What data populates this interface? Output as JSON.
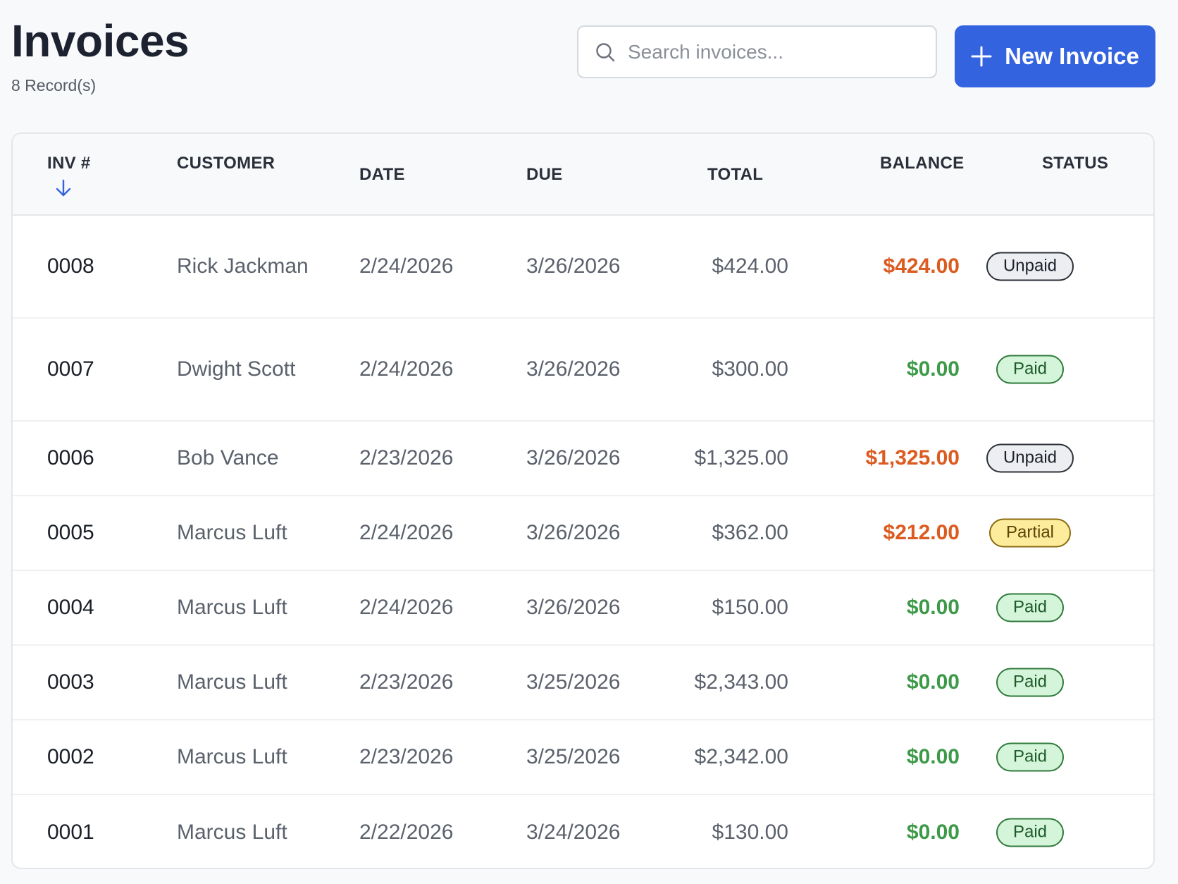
{
  "header": {
    "title": "Invoices",
    "record_count": "8 Record(s)"
  },
  "search": {
    "placeholder": "Search invoices...",
    "value": ""
  },
  "actions": {
    "new_invoice_label": "New Invoice"
  },
  "table": {
    "columns": {
      "inv": "INV #",
      "customer": "CUSTOMER",
      "date": "DATE",
      "due": "DUE",
      "total": "TOTAL",
      "balance": "BALANCE",
      "status": "STATUS"
    },
    "sort": {
      "column": "inv",
      "direction": "descending"
    },
    "rows": [
      {
        "inv": "0008",
        "customer": "Rick Jackman",
        "date": "2/24/2026",
        "due": "3/26/2026",
        "total": "$424.00",
        "balance": "$424.00",
        "status": "Unpaid"
      },
      {
        "inv": "0007",
        "customer": "Dwight Scott",
        "date": "2/24/2026",
        "due": "3/26/2026",
        "total": "$300.00",
        "balance": "$0.00",
        "status": "Paid"
      },
      {
        "inv": "0006",
        "customer": "Bob Vance",
        "date": "2/23/2026",
        "due": "3/26/2026",
        "total": "$1,325.00",
        "balance": "$1,325.00",
        "status": "Unpaid"
      },
      {
        "inv": "0005",
        "customer": "Marcus Luft",
        "date": "2/24/2026",
        "due": "3/26/2026",
        "total": "$362.00",
        "balance": "$212.00",
        "status": "Partial"
      },
      {
        "inv": "0004",
        "customer": "Marcus Luft",
        "date": "2/24/2026",
        "due": "3/26/2026",
        "total": "$150.00",
        "balance": "$0.00",
        "status": "Paid"
      },
      {
        "inv": "0003",
        "customer": "Marcus Luft",
        "date": "2/23/2026",
        "due": "3/25/2026",
        "total": "$2,343.00",
        "balance": "$0.00",
        "status": "Paid"
      },
      {
        "inv": "0002",
        "customer": "Marcus Luft",
        "date": "2/23/2026",
        "due": "3/25/2026",
        "total": "$2,342.00",
        "balance": "$0.00",
        "status": "Paid"
      },
      {
        "inv": "0001",
        "customer": "Marcus Luft",
        "date": "2/22/2026",
        "due": "3/24/2026",
        "total": "$130.00",
        "balance": "$0.00",
        "status": "Paid"
      }
    ]
  },
  "icons": {
    "search": "search-icon",
    "add": "plus-icon",
    "sort": "arrow-down-icon"
  },
  "colors": {
    "accent": "#3463e0",
    "balance_owed": "#dc5b20",
    "balance_clear": "#3d9a48",
    "badge_paid": "#d4f5da",
    "badge_unpaid": "#eceef1",
    "badge_partial": "#fcec9c"
  }
}
